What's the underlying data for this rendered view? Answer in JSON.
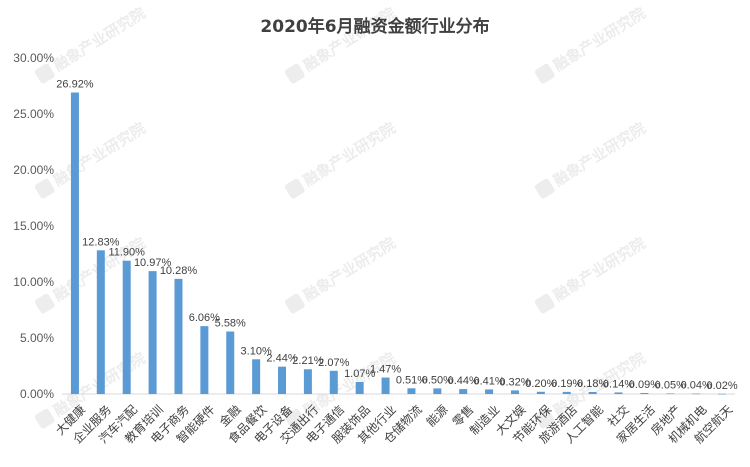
{
  "watermark": "融象产业研究院",
  "colors": {
    "bar": "#5B9BD5",
    "axis": "#D9D9D9",
    "text": "#404040"
  },
  "chart_data": {
    "type": "bar",
    "title": "2020年6月融资金额行业分布",
    "xlabel": "",
    "ylabel": "",
    "ylim": [
      0,
      30
    ],
    "yticks": [
      "0.00%",
      "5.00%",
      "10.00%",
      "15.00%",
      "20.00%",
      "25.00%",
      "30.00%"
    ],
    "grid": false,
    "legend": "none",
    "categories": [
      "大健康",
      "企业服务",
      "汽车汽配",
      "教育培训",
      "电子商务",
      "智能硬件",
      "金融",
      "食品餐饮",
      "电子设备",
      "交通出行",
      "电子通信",
      "服装饰品",
      "其他行业",
      "仓储物流",
      "能源",
      "零售",
      "制造业",
      "大文娱",
      "节能环保",
      "旅游酒店",
      "人工智能",
      "社交",
      "家居生活",
      "房地产",
      "机械机电",
      "航空航天"
    ],
    "values": [
      26.92,
      12.83,
      11.9,
      10.97,
      10.28,
      6.06,
      5.58,
      3.1,
      2.44,
      2.21,
      2.07,
      1.07,
      1.47,
      0.51,
      0.5,
      0.44,
      0.41,
      0.32,
      0.2,
      0.19,
      0.18,
      0.14,
      0.09,
      0.05,
      0.04,
      0.02
    ],
    "data_labels": [
      "26.92%",
      "12.83%",
      "11.90%",
      "10.97%",
      "10.28%",
      "6.06%",
      "5.58%",
      "3.10%",
      "2.44%",
      "2.21%",
      "2.07%",
      "1.07%",
      "1.47%",
      "0.51%",
      "0.50%",
      "0.44%",
      "0.41%",
      "0.32%",
      "0.20%",
      "0.19%",
      "0.18%",
      "0.14%",
      "0.09%",
      "0.05%",
      "0.04%",
      "0.02%"
    ]
  }
}
